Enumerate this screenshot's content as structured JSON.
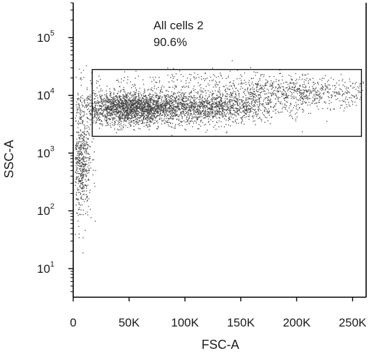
{
  "chart_data": {
    "type": "scatter",
    "plot_kind": "flow-cytometry-dot-plot",
    "xlabel": "FSC-A",
    "ylabel": "SSC-A",
    "x_scale": "linear",
    "y_scale": "log",
    "xlim": [
      0,
      262144
    ],
    "ylim": [
      3.2,
      400000
    ],
    "x_ticks": [
      {
        "value": 0,
        "label": "0"
      },
      {
        "value": 50000,
        "label": "50K"
      },
      {
        "value": 100000,
        "label": "100K"
      },
      {
        "value": 150000,
        "label": "150K"
      },
      {
        "value": 200000,
        "label": "200K"
      },
      {
        "value": 250000,
        "label": "250K"
      }
    ],
    "y_ticks": [
      {
        "value": 10,
        "base": "10",
        "exp": "1"
      },
      {
        "value": 100,
        "base": "10",
        "exp": "2"
      },
      {
        "value": 1000,
        "base": "10",
        "exp": "3"
      },
      {
        "value": 10000,
        "base": "10",
        "exp": "4"
      },
      {
        "value": 100000,
        "base": "10",
        "exp": "5"
      }
    ],
    "gate": {
      "name": "All cells 2",
      "percent": "90.6%",
      "x_range": [
        17000,
        258000
      ],
      "y_range": [
        1950,
        28000
      ]
    },
    "populations": [
      {
        "x_mean": 50000,
        "x_sd": 22000,
        "log_y_mean": 3.78,
        "log_y_sd": 0.14,
        "weight": 0.38
      },
      {
        "x_mean": 115000,
        "x_sd": 35000,
        "log_y_mean": 3.8,
        "log_y_sd": 0.14,
        "weight": 0.34
      },
      {
        "x_mean": 205000,
        "x_sd": 35000,
        "log_y_mean": 4.05,
        "log_y_sd": 0.12,
        "weight": 0.13
      },
      {
        "x_mean": 8000,
        "x_sd": 4000,
        "log_y_mean": 2.8,
        "log_y_sd": 0.45,
        "weight": 0.1
      },
      {
        "x_mean": 120000,
        "x_sd": 60000,
        "log_y_mean": 4.25,
        "log_y_sd": 0.1,
        "weight": 0.05
      }
    ],
    "dot_color": "#444444",
    "event_count_drawn": 5000
  }
}
